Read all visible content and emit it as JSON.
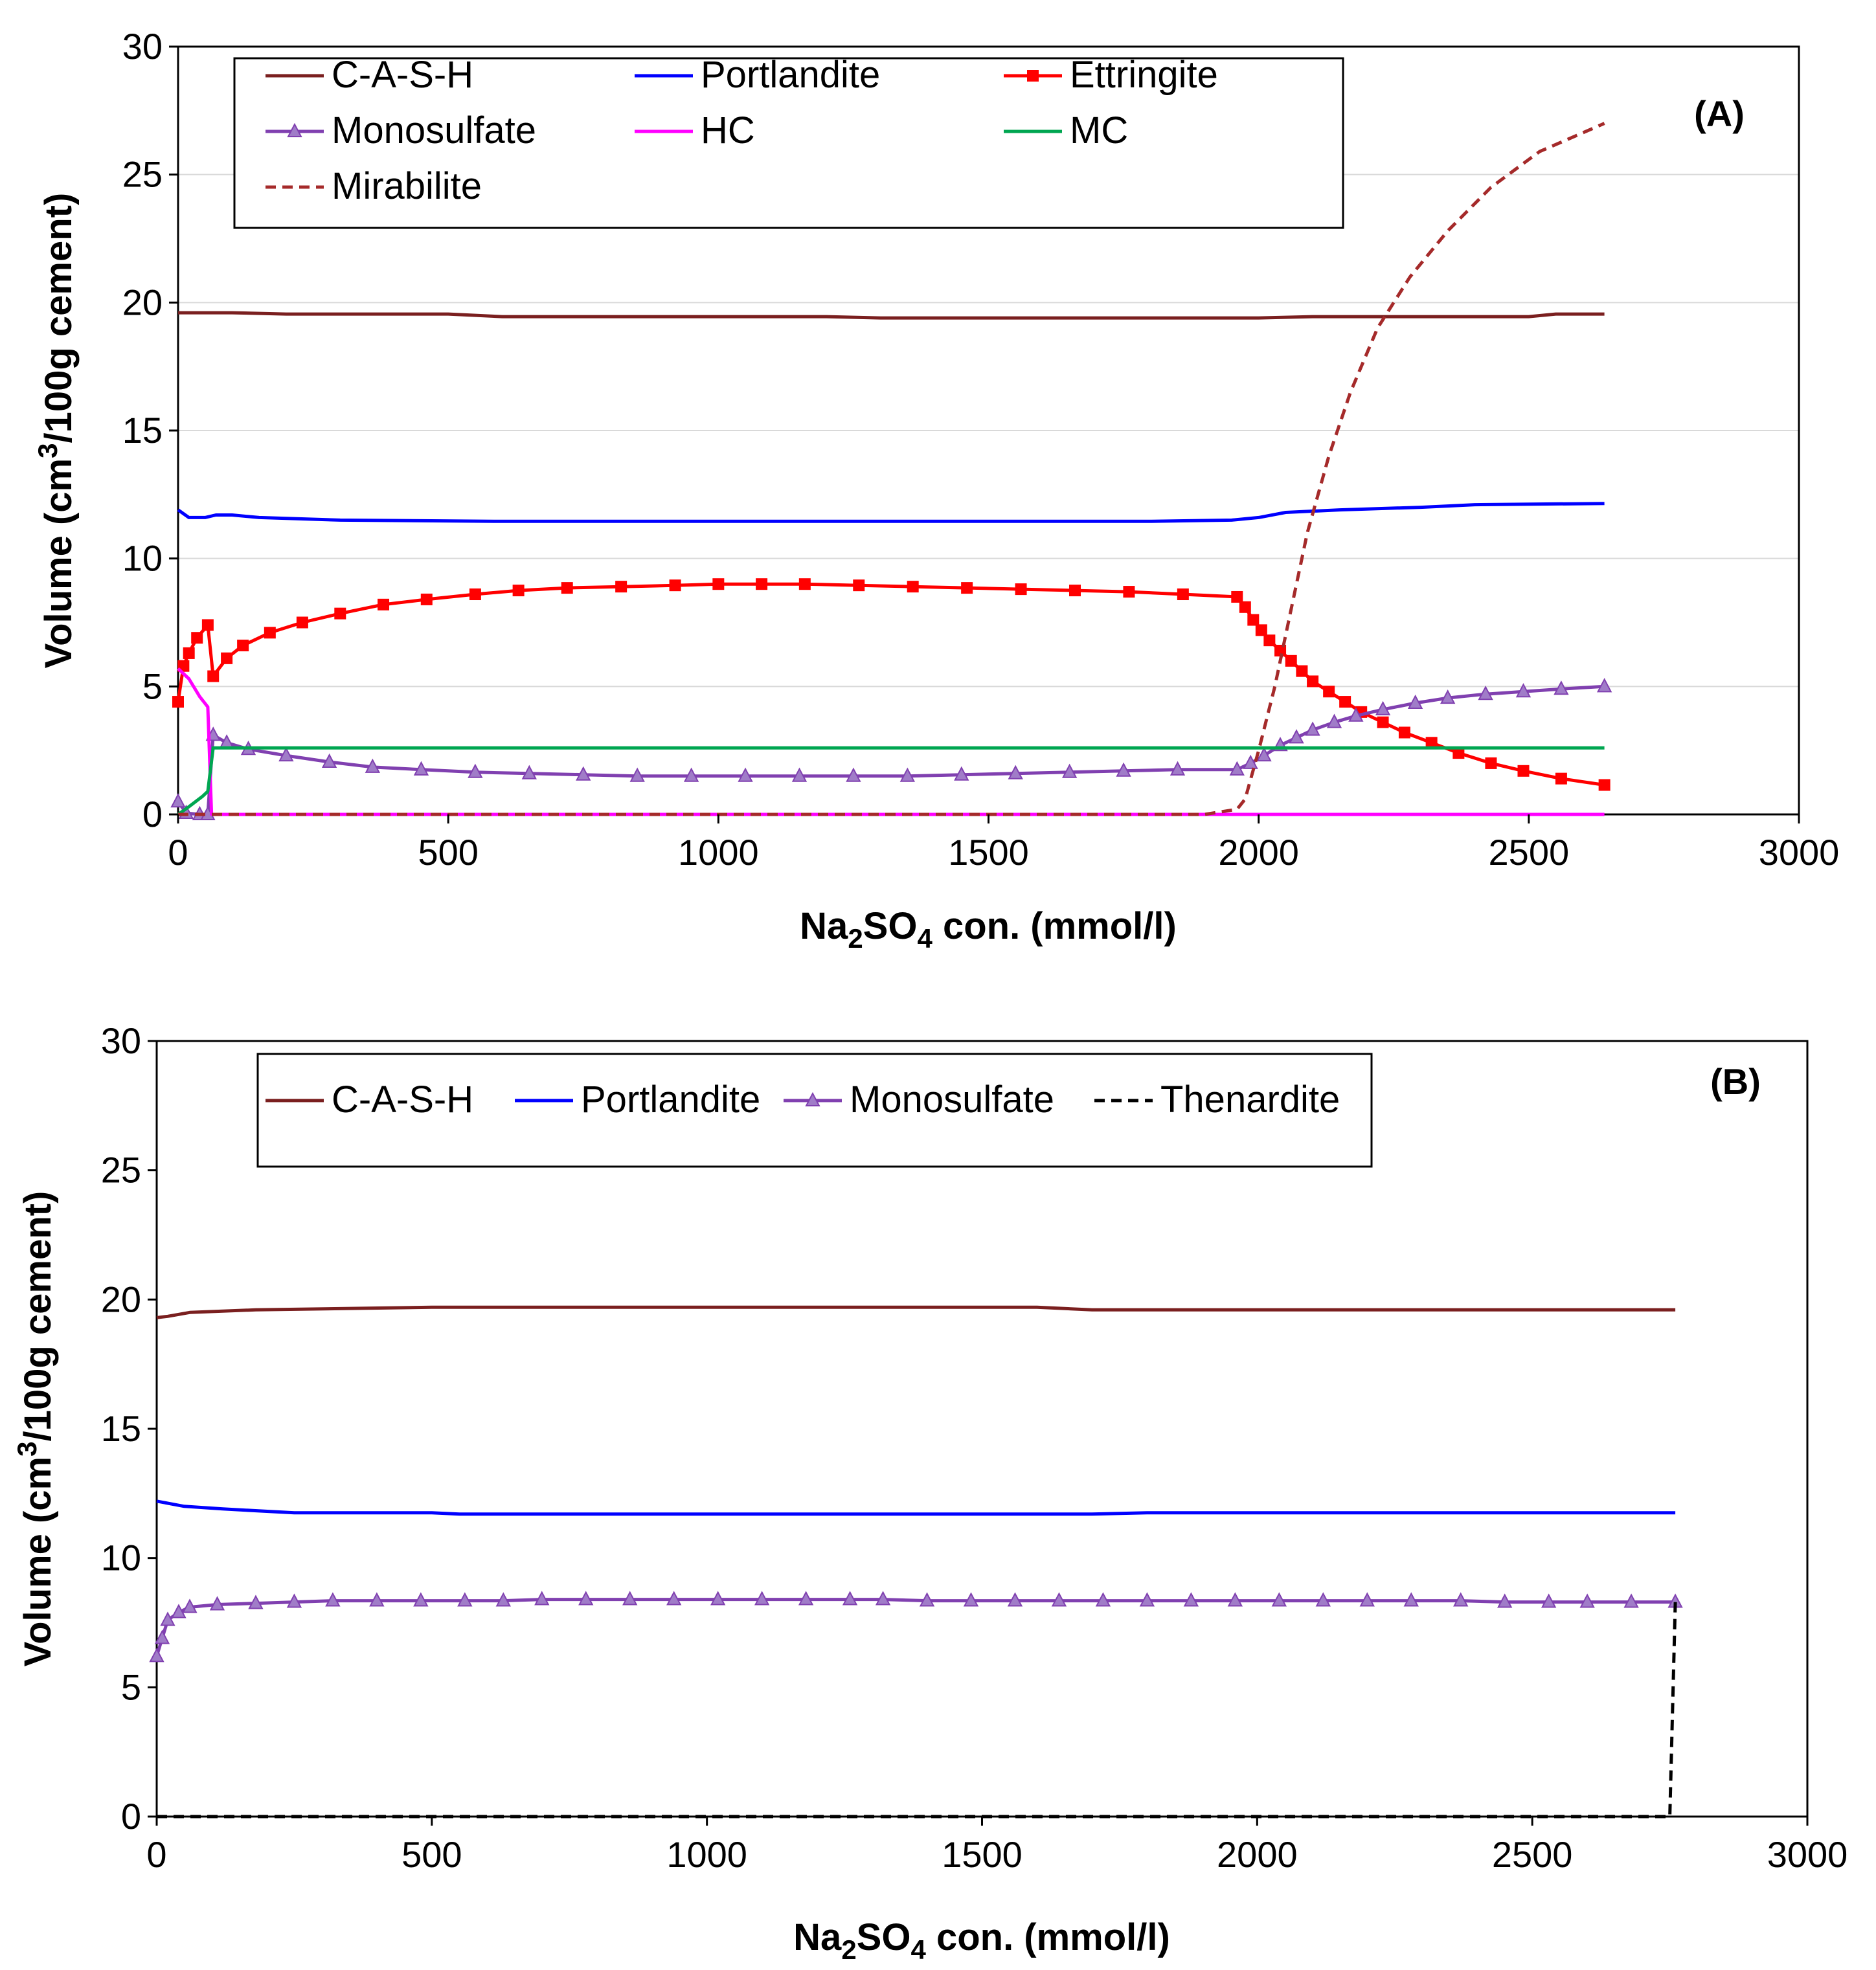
{
  "chart_data": [
    {
      "type": "line",
      "panel_label": "(A)",
      "xlabel_main": "Na",
      "xlabel_sub": "2",
      "xlabel_mid": "SO",
      "xlabel_sub2": "4",
      "xlabel_tail": " con. (mmol/l)",
      "ylabel_main": "Volume (cm",
      "ylabel_sup": "3",
      "ylabel_tail": "/100g cement)",
      "xlim": [
        0,
        3000
      ],
      "ylim": [
        0,
        30
      ],
      "x_ticks": [
        "0",
        "500",
        "1000",
        "1500",
        "2000",
        "2500",
        "3000"
      ],
      "y_ticks": [
        "0",
        "5",
        "10",
        "15",
        "20",
        "25",
        "30"
      ],
      "grid": "horizontal",
      "legend_columns": 3,
      "series": [
        {
          "name": "C-A-S-H",
          "color": "#7a1f1f",
          "dash": false,
          "marker": "none",
          "points": [
            [
              0,
              19.6
            ],
            [
              100,
              19.6
            ],
            [
              200,
              19.55
            ],
            [
              500,
              19.55
            ],
            [
              600,
              19.45
            ],
            [
              1200,
              19.45
            ],
            [
              1300,
              19.4
            ],
            [
              2000,
              19.4
            ],
            [
              2100,
              19.45
            ],
            [
              2500,
              19.45
            ],
            [
              2550,
              19.55
            ],
            [
              2640,
              19.55
            ]
          ]
        },
        {
          "name": "Portlandite",
          "color": "#0000ff",
          "dash": false,
          "marker": "none",
          "points": [
            [
              0,
              11.9
            ],
            [
              20,
              11.6
            ],
            [
              50,
              11.6
            ],
            [
              70,
              11.7
            ],
            [
              100,
              11.7
            ],
            [
              150,
              11.6
            ],
            [
              300,
              11.5
            ],
            [
              600,
              11.45
            ],
            [
              1200,
              11.45
            ],
            [
              1800,
              11.45
            ],
            [
              1950,
              11.5
            ],
            [
              2000,
              11.6
            ],
            [
              2050,
              11.8
            ],
            [
              2150,
              11.9
            ],
            [
              2300,
              12.0
            ],
            [
              2400,
              12.1
            ],
            [
              2640,
              12.15
            ]
          ]
        },
        {
          "name": "Ettringite",
          "color": "#ff0000",
          "dash": false,
          "marker": "square",
          "points": [
            [
              0,
              4.4
            ],
            [
              10,
              5.8
            ],
            [
              20,
              6.3
            ],
            [
              35,
              6.9
            ],
            [
              55,
              7.4
            ],
            [
              65,
              5.4
            ],
            [
              90,
              6.1
            ],
            [
              120,
              6.6
            ],
            [
              170,
              7.1
            ],
            [
              230,
              7.5
            ],
            [
              300,
              7.85
            ],
            [
              380,
              8.2
            ],
            [
              460,
              8.4
            ],
            [
              550,
              8.6
            ],
            [
              630,
              8.75
            ],
            [
              720,
              8.85
            ],
            [
              820,
              8.9
            ],
            [
              920,
              8.95
            ],
            [
              1000,
              9.0
            ],
            [
              1080,
              9.0
            ],
            [
              1160,
              9.0
            ],
            [
              1260,
              8.95
            ],
            [
              1360,
              8.9
            ],
            [
              1460,
              8.85
            ],
            [
              1560,
              8.8
            ],
            [
              1660,
              8.75
            ],
            [
              1760,
              8.7
            ],
            [
              1860,
              8.6
            ],
            [
              1960,
              8.5
            ],
            [
              1975,
              8.1
            ],
            [
              1990,
              7.6
            ],
            [
              2005,
              7.2
            ],
            [
              2020,
              6.8
            ],
            [
              2040,
              6.4
            ],
            [
              2060,
              6.0
            ],
            [
              2080,
              5.6
            ],
            [
              2100,
              5.2
            ],
            [
              2130,
              4.8
            ],
            [
              2160,
              4.4
            ],
            [
              2190,
              4.0
            ],
            [
              2230,
              3.6
            ],
            [
              2270,
              3.2
            ],
            [
              2320,
              2.8
            ],
            [
              2370,
              2.4
            ],
            [
              2430,
              2.0
            ],
            [
              2490,
              1.7
            ],
            [
              2560,
              1.4
            ],
            [
              2640,
              1.15
            ]
          ]
        },
        {
          "name": "Monosulfate",
          "color": "#8040b0",
          "dash": false,
          "marker": "triangle",
          "points": [
            [
              0,
              0.5
            ],
            [
              15,
              0.05
            ],
            [
              40,
              0.0
            ],
            [
              55,
              0.0
            ],
            [
              65,
              3.1
            ],
            [
              90,
              2.8
            ],
            [
              130,
              2.55
            ],
            [
              200,
              2.3
            ],
            [
              280,
              2.05
            ],
            [
              360,
              1.85
            ],
            [
              450,
              1.75
            ],
            [
              550,
              1.65
            ],
            [
              650,
              1.6
            ],
            [
              750,
              1.55
            ],
            [
              850,
              1.5
            ],
            [
              950,
              1.5
            ],
            [
              1050,
              1.5
            ],
            [
              1150,
              1.5
            ],
            [
              1250,
              1.5
            ],
            [
              1350,
              1.5
            ],
            [
              1450,
              1.55
            ],
            [
              1550,
              1.6
            ],
            [
              1650,
              1.65
            ],
            [
              1750,
              1.7
            ],
            [
              1850,
              1.75
            ],
            [
              1960,
              1.75
            ],
            [
              1985,
              2.0
            ],
            [
              2010,
              2.3
            ],
            [
              2040,
              2.7
            ],
            [
              2070,
              3.0
            ],
            [
              2100,
              3.3
            ],
            [
              2140,
              3.6
            ],
            [
              2180,
              3.85
            ],
            [
              2230,
              4.1
            ],
            [
              2290,
              4.35
            ],
            [
              2350,
              4.55
            ],
            [
              2420,
              4.7
            ],
            [
              2490,
              4.8
            ],
            [
              2560,
              4.9
            ],
            [
              2640,
              5.0
            ]
          ]
        },
        {
          "name": "HC",
          "color": "#ff00ff",
          "dash": false,
          "marker": "none",
          "points": [
            [
              0,
              5.7
            ],
            [
              20,
              5.3
            ],
            [
              40,
              4.6
            ],
            [
              55,
              4.2
            ],
            [
              62,
              0.0
            ],
            [
              2640,
              0.0
            ]
          ]
        },
        {
          "name": "MC",
          "color": "#00a651",
          "dash": false,
          "marker": "none",
          "points": [
            [
              0,
              0.0
            ],
            [
              20,
              0.3
            ],
            [
              45,
              0.7
            ],
            [
              55,
              0.9
            ],
            [
              65,
              2.6
            ],
            [
              2640,
              2.6
            ]
          ]
        },
        {
          "name": "Mirabilite",
          "color": "#a52a2a",
          "dash": true,
          "marker": "none",
          "points": [
            [
              0,
              0.0
            ],
            [
              1900,
              0.0
            ],
            [
              1960,
              0.2
            ],
            [
              1975,
              0.6
            ],
            [
              2000,
              2.5
            ],
            [
              2030,
              5.0
            ],
            [
              2060,
              8.0
            ],
            [
              2090,
              11.0
            ],
            [
              2130,
              14.0
            ],
            [
              2170,
              16.5
            ],
            [
              2220,
              19.0
            ],
            [
              2280,
              21.0
            ],
            [
              2350,
              22.8
            ],
            [
              2430,
              24.5
            ],
            [
              2520,
              25.9
            ],
            [
              2640,
              27.0
            ]
          ]
        }
      ],
      "legend_labels": [
        "C-A-S-H",
        "Portlandite",
        "Ettringite",
        "Monosulfate",
        "HC",
        "MC",
        "Mirabilite"
      ]
    },
    {
      "type": "line",
      "panel_label": "(B)",
      "xlabel_main": "Na",
      "xlabel_sub": "2",
      "xlabel_mid": "SO",
      "xlabel_sub2": "4",
      "xlabel_tail": " con. (mmol/l)",
      "ylabel_main": "Volume (cm",
      "ylabel_sup": "3",
      "ylabel_tail": "/100g cement)",
      "xlim": [
        0,
        3000
      ],
      "ylim": [
        0,
        30
      ],
      "x_ticks": [
        "0",
        "500",
        "1000",
        "1500",
        "2000",
        "2500",
        "3000"
      ],
      "y_ticks": [
        "0",
        "5",
        "10",
        "15",
        "20",
        "25",
        "30"
      ],
      "grid": "none",
      "legend_columns": 4,
      "series": [
        {
          "name": "C-A-S-H",
          "color": "#7a1f1f",
          "dash": false,
          "marker": "none",
          "points": [
            [
              0,
              19.3
            ],
            [
              20,
              19.35
            ],
            [
              60,
              19.5
            ],
            [
              180,
              19.6
            ],
            [
              500,
              19.7
            ],
            [
              1600,
              19.7
            ],
            [
              1700,
              19.6
            ],
            [
              2760,
              19.6
            ]
          ]
        },
        {
          "name": "Portlandite",
          "color": "#0000ff",
          "dash": false,
          "marker": "none",
          "points": [
            [
              0,
              12.2
            ],
            [
              50,
              12.0
            ],
            [
              120,
              11.9
            ],
            [
              250,
              11.75
            ],
            [
              500,
              11.75
            ],
            [
              550,
              11.7
            ],
            [
              1700,
              11.7
            ],
            [
              1800,
              11.75
            ],
            [
              2760,
              11.75
            ]
          ]
        },
        {
          "name": "Monosulfate",
          "color": "#8040b0",
          "dash": false,
          "marker": "triangle",
          "points": [
            [
              0,
              6.2
            ],
            [
              10,
              6.9
            ],
            [
              20,
              7.6
            ],
            [
              40,
              7.9
            ],
            [
              60,
              8.1
            ],
            [
              110,
              8.2
            ],
            [
              180,
              8.25
            ],
            [
              250,
              8.3
            ],
            [
              320,
              8.35
            ],
            [
              400,
              8.35
            ],
            [
              480,
              8.35
            ],
            [
              560,
              8.35
            ],
            [
              630,
              8.35
            ],
            [
              700,
              8.4
            ],
            [
              780,
              8.4
            ],
            [
              860,
              8.4
            ],
            [
              940,
              8.4
            ],
            [
              1020,
              8.4
            ],
            [
              1100,
              8.4
            ],
            [
              1180,
              8.4
            ],
            [
              1260,
              8.4
            ],
            [
              1320,
              8.4
            ],
            [
              1400,
              8.35
            ],
            [
              1480,
              8.35
            ],
            [
              1560,
              8.35
            ],
            [
              1640,
              8.35
            ],
            [
              1720,
              8.35
            ],
            [
              1800,
              8.35
            ],
            [
              1880,
              8.35
            ],
            [
              1960,
              8.35
            ],
            [
              2040,
              8.35
            ],
            [
              2120,
              8.35
            ],
            [
              2200,
              8.35
            ],
            [
              2280,
              8.35
            ],
            [
              2370,
              8.35
            ],
            [
              2450,
              8.3
            ],
            [
              2530,
              8.3
            ],
            [
              2600,
              8.3
            ],
            [
              2680,
              8.3
            ],
            [
              2760,
              8.3
            ]
          ]
        },
        {
          "name": "Thenardite",
          "color": "#000000",
          "dash": true,
          "marker": "none",
          "points": [
            [
              0,
              0.0
            ],
            [
              2750,
              0.0
            ],
            [
              2760,
              8.3
            ]
          ]
        }
      ],
      "legend_labels": [
        "C-A-S-H",
        "Portlandite",
        "Monosulfate",
        "Thenardite"
      ]
    }
  ]
}
